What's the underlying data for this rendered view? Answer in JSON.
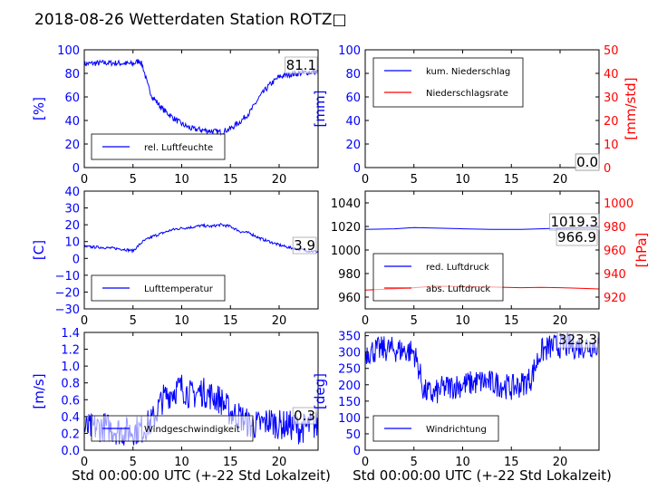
{
  "title": "2018-08-26 Wetterdaten Station ROTZ□",
  "chart_data": [
    {
      "type": "line",
      "ylabel": "[%]",
      "ylim": [
        0,
        100
      ],
      "yticks": [
        "0",
        "20",
        "40",
        "60",
        "80",
        "100"
      ],
      "xlim": [
        0,
        24
      ],
      "xticks": [
        "0",
        "5",
        "10",
        "15",
        "20"
      ],
      "series": [
        {
          "name": "rel. Luftfeuchte",
          "color": "#0000ff",
          "noise": 2.5,
          "x": [
            0,
            2,
            4,
            5,
            5.7,
            6,
            6.5,
            7,
            8,
            9,
            10,
            11,
            12,
            13,
            14,
            15,
            16,
            17,
            18,
            19,
            20,
            21,
            22,
            23,
            24
          ],
          "y": [
            88,
            89,
            88.5,
            88,
            91,
            86,
            70,
            60,
            50,
            43,
            37,
            33,
            32,
            31,
            30,
            33,
            39,
            47,
            60,
            70,
            77,
            79,
            80,
            81,
            81.1
          ]
        }
      ],
      "last_value": "81.1"
    },
    {
      "type": "line",
      "ylabel": "[mm]",
      "ylabel_right": "[mm/std]",
      "ylim": [
        0,
        100
      ],
      "ylim_right": [
        0,
        50
      ],
      "yticks": [
        "0",
        "20",
        "40",
        "60",
        "80",
        "100"
      ],
      "yticks_right": [
        "0",
        "10",
        "20",
        "30",
        "40",
        "50"
      ],
      "xlim": [
        0,
        24
      ],
      "xticks": [
        "0",
        "5",
        "10",
        "15",
        "20"
      ],
      "series": [
        {
          "name": "kum. Niederschlag",
          "color": "#0000ff",
          "noise": 0,
          "x": [
            0,
            24
          ],
          "y": [
            0,
            0
          ]
        },
        {
          "name": "Niederschlagsrate",
          "color": "#ff0000",
          "noise": 0,
          "x": [
            0,
            24
          ],
          "y": [
            0,
            0
          ]
        }
      ],
      "last_values": [
        "0.0",
        "0.0"
      ]
    },
    {
      "type": "line",
      "ylabel": "[C]",
      "ylim": [
        -30,
        40
      ],
      "yticks": [
        "−30",
        "−20",
        "−10",
        "0",
        "10",
        "20",
        "30",
        "40"
      ],
      "xlim": [
        0,
        24
      ],
      "xticks": [
        "0",
        "5",
        "10",
        "15",
        "20"
      ],
      "series": [
        {
          "name": "Lufttemperatur",
          "color": "#0000ff",
          "noise": 0.8,
          "x": [
            0,
            2,
            4,
            5,
            6,
            7,
            8,
            9,
            10,
            11,
            12,
            13,
            14,
            15,
            16,
            17,
            18,
            19,
            20,
            21,
            22,
            23,
            24
          ],
          "y": [
            7,
            6.5,
            5.5,
            4.5,
            10,
            13,
            15,
            17,
            18,
            18.5,
            19.5,
            19,
            20,
            19,
            16,
            15,
            12,
            10,
            8,
            6.5,
            5.5,
            4.5,
            3.9
          ]
        }
      ],
      "last_value": "3.9"
    },
    {
      "type": "line",
      "ylabel": "[hPa]",
      "ylabel_side": "right",
      "ylim": [
        950,
        1050
      ],
      "ylim_right": [
        910,
        1010
      ],
      "yticks": [
        "960",
        "980",
        "1000",
        "1020",
        "1040"
      ],
      "yticks_right": [
        "920",
        "940",
        "960",
        "980",
        "1000"
      ],
      "xlim": [
        0,
        24
      ],
      "xticks": [
        "0",
        "5",
        "10",
        "15",
        "20"
      ],
      "series": [
        {
          "name": "red. Luftdruck",
          "color": "#0000ff",
          "noise": 0,
          "x": [
            0,
            3,
            5,
            7,
            10,
            13,
            16,
            18,
            20,
            22,
            24
          ],
          "y": [
            1017.5,
            1018,
            1019,
            1018.7,
            1018,
            1017.5,
            1017.5,
            1018,
            1018.5,
            1019,
            1019.3
          ]
        },
        {
          "name": "abs. Luftdruck",
          "color": "#ff0000",
          "noise": 0,
          "x": [
            0,
            3,
            5,
            7,
            10,
            13,
            16,
            18,
            20,
            22,
            24
          ],
          "y": [
            966,
            967,
            968,
            969.2,
            969,
            968.5,
            968,
            968.2,
            968,
            967.5,
            966.9
          ]
        }
      ],
      "last_values": [
        "1019.3",
        "966.9"
      ]
    },
    {
      "type": "line",
      "ylabel": "[m/s]",
      "ylim": [
        0,
        1.4
      ],
      "yticks": [
        "0.0",
        "0.2",
        "0.4",
        "0.6",
        "0.8",
        "1.0",
        "1.2",
        "1.4"
      ],
      "xlim": [
        0,
        24
      ],
      "xticks": [
        "0",
        "5",
        "10",
        "15",
        "20"
      ],
      "xlabel": "Std 00:00:00 UTC (+-22 Std Lokalzeit)",
      "series": [
        {
          "name": "Windgeschwindigkeit",
          "color": "#0000ff",
          "noise": 0.18,
          "x": [
            0,
            2,
            4,
            6,
            7,
            8,
            9,
            10,
            11,
            12,
            13,
            14,
            15,
            16,
            17,
            18,
            19,
            20,
            21,
            22,
            23,
            24
          ],
          "y": [
            0.25,
            0.28,
            0.22,
            0.25,
            0.35,
            0.6,
            0.7,
            0.75,
            0.65,
            0.7,
            0.65,
            0.6,
            0.45,
            0.4,
            0.3,
            0.3,
            0.35,
            0.3,
            0.3,
            0.25,
            0.28,
            0.3
          ]
        }
      ],
      "last_value": "0.3"
    },
    {
      "type": "line",
      "ylabel": "[deg]",
      "ylim": [
        0,
        360
      ],
      "yticks": [
        "0",
        "50",
        "100",
        "150",
        "200",
        "250",
        "300",
        "350"
      ],
      "xlim": [
        0,
        24
      ],
      "xticks": [
        "0",
        "5",
        "10",
        "15",
        "20"
      ],
      "xlabel": "Std 00:00:00 UTC (+-22 Std Lokalzeit)",
      "series": [
        {
          "name": "Windrichtung",
          "color": "#0000ff",
          "noise": 40,
          "x": [
            0,
            2,
            4,
            5,
            5.5,
            6,
            7,
            8,
            10,
            12,
            14,
            15,
            16,
            17,
            18,
            19,
            20,
            22,
            24
          ],
          "y": [
            300,
            310,
            305,
            300,
            250,
            180,
            170,
            190,
            200,
            210,
            200,
            190,
            200,
            220,
            300,
            315,
            320,
            318,
            323
          ]
        }
      ],
      "last_value": "323.3"
    }
  ]
}
